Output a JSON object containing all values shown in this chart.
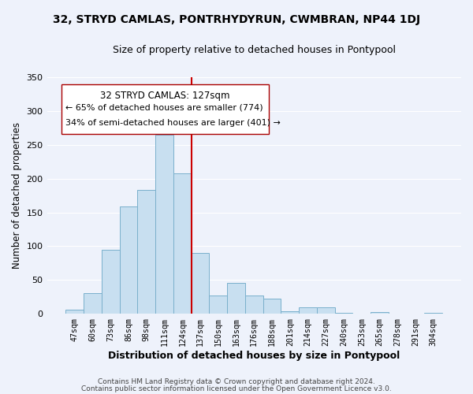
{
  "title": "32, STRYD CAMLAS, PONTRHYDYRUN, CWMBRAN, NP44 1DJ",
  "subtitle": "Size of property relative to detached houses in Pontypool",
  "xlabel": "Distribution of detached houses by size in Pontypool",
  "ylabel": "Number of detached properties",
  "bar_color": "#c8dff0",
  "bar_edge_color": "#7ab0cc",
  "categories": [
    "47sqm",
    "60sqm",
    "73sqm",
    "86sqm",
    "98sqm",
    "111sqm",
    "124sqm",
    "137sqm",
    "150sqm",
    "163sqm",
    "176sqm",
    "188sqm",
    "201sqm",
    "214sqm",
    "227sqm",
    "240sqm",
    "253sqm",
    "265sqm",
    "278sqm",
    "291sqm",
    "304sqm"
  ],
  "values": [
    6,
    31,
    95,
    159,
    183,
    265,
    208,
    90,
    27,
    46,
    27,
    22,
    4,
    10,
    10,
    1,
    0,
    3,
    0,
    0,
    1
  ],
  "vline_index": 6.5,
  "property_line_label": "32 STRYD CAMLAS: 127sqm",
  "annotation_line1": "← 65% of detached houses are smaller (774)",
  "annotation_line2": "34% of semi-detached houses are larger (401) →",
  "vline_color": "#cc0000",
  "ylim": [
    0,
    350
  ],
  "yticks": [
    0,
    50,
    100,
    150,
    200,
    250,
    300,
    350
  ],
  "footer1": "Contains HM Land Registry data © Crown copyright and database right 2024.",
  "footer2": "Contains public sector information licensed under the Open Government Licence v3.0.",
  "background_color": "#eef2fb",
  "plot_bg_color": "#eef2fb",
  "box_facecolor": "#ffffff",
  "box_edgecolor": "#aa0000",
  "grid_color": "#ffffff"
}
